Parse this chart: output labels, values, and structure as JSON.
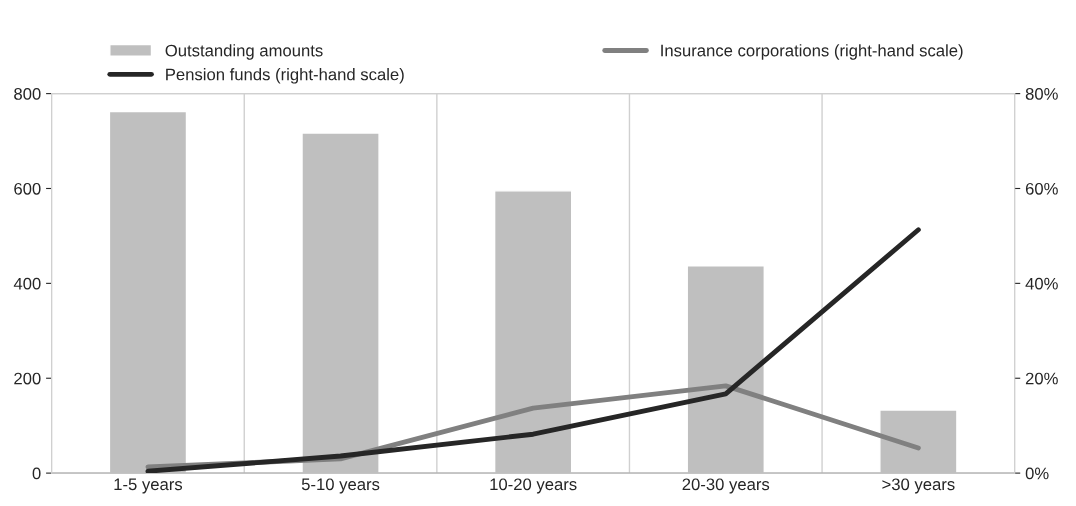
{
  "chart_data": {
    "type": "bar",
    "categories": [
      "1-5 years",
      "5-10 years",
      "10-20 years",
      "20-30 years",
      ">30 years"
    ],
    "series": [
      {
        "name": "Outstanding amounts",
        "color": "#bfbfbf",
        "values": [
          762,
          717,
          595,
          437,
          133
        ]
      },
      {
        "name": "Insurance corporations (right-hand scale)",
        "type": "line",
        "axis": "y2",
        "color": "#808080",
        "values": [
          1.3,
          3,
          13.7,
          18.4,
          5.3
        ]
      },
      {
        "name": "Pension funds (right-hand scale)",
        "type": "line",
        "axis": "y2",
        "color": "#262626",
        "values": [
          0.4,
          3.6,
          8.2,
          16.7,
          51.3
        ]
      }
    ],
    "ylim": [
      0,
      800
    ],
    "yticks": [
      0,
      200,
      400,
      600,
      800
    ],
    "y2lim": [
      0,
      80
    ],
    "y2ticks": [
      {
        "value": 0,
        "label": "0%"
      },
      {
        "value": 20,
        "label": "20%"
      },
      {
        "value": 40,
        "label": "40%"
      },
      {
        "value": 60,
        "label": "60%"
      },
      {
        "value": 80,
        "label": "80%"
      }
    ],
    "grid": "x",
    "legend": "top",
    "marker": "none",
    "line_style": "solid"
  }
}
